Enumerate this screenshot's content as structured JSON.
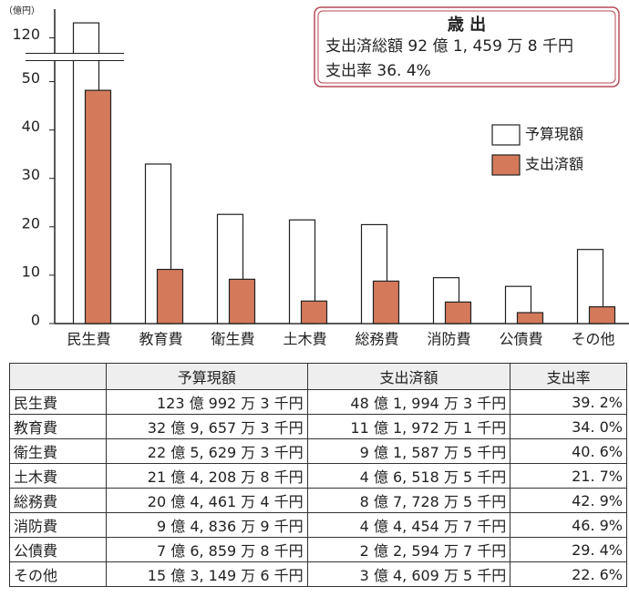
{
  "chart_data": {
    "type": "bar",
    "unit_label": "（億円）",
    "categories": [
      "民生費",
      "教育費",
      "衛生費",
      "土木費",
      "総務費",
      "消防費",
      "公債費",
      "その他"
    ],
    "series": [
      {
        "name": "予算現額",
        "color": "#ffffff",
        "values": [
          123.0992,
          32.9657,
          22.5629,
          21.4208,
          20.4461,
          9.4836,
          7.6859,
          15.3149
        ]
      },
      {
        "name": "支出済額",
        "color": "#d4795a",
        "values": [
          48.1994,
          11.1972,
          9.1587,
          4.6518,
          8.7728,
          4.4454,
          2.2594,
          3.4609
        ]
      }
    ],
    "ylim": [
      0,
      125
    ],
    "yticks": [
      0,
      10,
      20,
      30,
      40,
      50,
      120
    ],
    "axis_break": true,
    "grid": false,
    "legend": "upper right"
  },
  "summary": {
    "title": "歳 出",
    "lines": [
      "支出済総額  92 億 1, 459 万 8 千円",
      "支出率  36. 4%"
    ]
  },
  "table": {
    "header": [
      "予算現額",
      "支出済額",
      "支出率"
    ],
    "rows": [
      [
        "民生費",
        "123 億 992 万 3 千円",
        "48 億 1, 994 万 3 千円",
        "39. 2%"
      ],
      [
        "教育費",
        "32 億 9, 657 万 3 千円",
        "11 億 1, 972 万 1 千円",
        "34. 0%"
      ],
      [
        "衛生費",
        "22 億 5, 629 万 3 千円",
        "9 億 1, 587 万 5 千円",
        "40. 6%"
      ],
      [
        "土木費",
        "21 億 4, 208 万 8 千円",
        "4 億 6, 518 万 5 千円",
        "21. 7%"
      ],
      [
        "総務費",
        "20 億 4, 461 万 4 千円",
        "8 億 7, 728 万 5 千円",
        "42. 9%"
      ],
      [
        "消防費",
        "9 億 4, 836 万 9 千円",
        "4 億 4, 454 万 7 千円",
        "46. 9%"
      ],
      [
        "公債費",
        "7 億 6, 859 万 8 千円",
        "2 億 2, 594 万 7 千円",
        "29. 4%"
      ],
      [
        "その他",
        "15 億 3, 149 万 6 千円",
        "3 億 4, 609 万 5 千円",
        "22. 6%"
      ]
    ]
  }
}
